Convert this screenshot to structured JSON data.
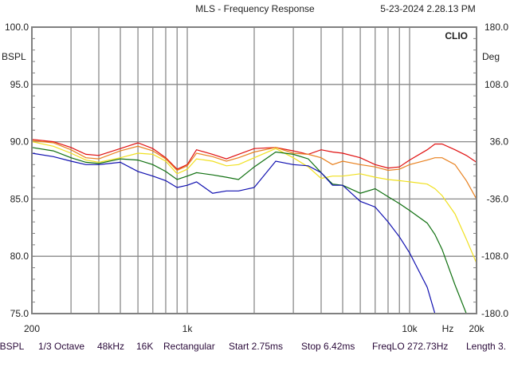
{
  "header": {
    "title": "MLS - Frequency Response",
    "timestamp": "5-23-2024 2.28.13 PM",
    "brand": "CLIO"
  },
  "footer": [
    "dBSPL",
    "1/3 Octave",
    "48kHz",
    "16K",
    "Rectangular",
    "Start 2.75ms",
    "Stop 6.42ms",
    "FreqLO 272.73Hz",
    "Length 3."
  ],
  "chart_data": {
    "type": "line",
    "title": "MLS - Frequency Response",
    "xlabel": "Hz",
    "ylabel": "dBSPL",
    "ylabel_display": "BSPL",
    "y2label": "Deg",
    "xscale": "log",
    "xlim": [
      200,
      20000
    ],
    "ylim": [
      75,
      100
    ],
    "y2lim": [
      -180,
      180
    ],
    "x_tick_labels": [
      "200",
      "1k",
      "10k",
      "20k"
    ],
    "x_tick_values": [
      200,
      1000,
      10000,
      20000
    ],
    "y_tick_labels": [
      "100.0",
      "95.0",
      "90.0",
      "85.0",
      "80.0",
      "75.0"
    ],
    "y_tick_values": [
      100,
      95,
      90,
      85,
      80,
      75
    ],
    "y2_tick_labels": [
      "180.0",
      "108.0",
      "36.0",
      "-36.0",
      "-108.0",
      "-180.0"
    ],
    "grid": true,
    "x": [
      200,
      250,
      300,
      350,
      400,
      500,
      600,
      700,
      800,
      900,
      1000,
      1100,
      1300,
      1500,
      1700,
      2000,
      2500,
      3000,
      3500,
      4000,
      4500,
      5000,
      6000,
      7000,
      8000,
      9000,
      10000,
      12000,
      13000,
      14000,
      16000,
      18000,
      20000
    ],
    "series": [
      {
        "name": "red",
        "color": "#e01010",
        "values": [
          90.2,
          90.0,
          89.5,
          88.9,
          88.8,
          89.4,
          89.9,
          89.4,
          88.6,
          87.6,
          88.0,
          89.3,
          88.9,
          88.5,
          88.9,
          89.4,
          89.5,
          89.2,
          88.9,
          89.3,
          89.1,
          89.0,
          88.6,
          88.0,
          87.7,
          87.8,
          88.4,
          89.3,
          89.8,
          89.8,
          89.3,
          88.8,
          88.2
        ]
      },
      {
        "name": "orange",
        "color": "#e8801e",
        "values": [
          90.1,
          89.9,
          89.3,
          88.6,
          88.5,
          89.2,
          89.6,
          89.2,
          88.5,
          87.5,
          87.9,
          89.0,
          88.7,
          88.3,
          88.6,
          89.1,
          89.5,
          89.0,
          88.9,
          88.6,
          88.0,
          88.3,
          88.0,
          87.8,
          87.5,
          87.6,
          88.0,
          88.4,
          88.6,
          88.6,
          88.0,
          86.6,
          85.0
        ]
      },
      {
        "name": "yellow",
        "color": "#f0e020",
        "values": [
          90.0,
          89.6,
          89.0,
          88.4,
          88.2,
          88.6,
          89.0,
          88.9,
          88.3,
          87.2,
          87.6,
          88.5,
          88.3,
          87.9,
          88.0,
          88.6,
          89.4,
          88.6,
          87.8,
          86.8,
          87.0,
          87.0,
          87.2,
          86.9,
          86.7,
          86.6,
          86.5,
          86.3,
          85.9,
          85.3,
          83.7,
          81.5,
          79.4
        ]
      },
      {
        "name": "green",
        "color": "#107010",
        "values": [
          89.5,
          89.2,
          88.6,
          88.2,
          88.1,
          88.5,
          88.4,
          88.0,
          87.4,
          86.7,
          87.0,
          87.3,
          87.1,
          86.9,
          86.7,
          87.8,
          89.1,
          88.9,
          88.5,
          87.3,
          86.3,
          86.2,
          85.5,
          85.9,
          85.2,
          84.6,
          84.0,
          82.9,
          81.9,
          80.6,
          77.5,
          75.0,
          75.0
        ]
      },
      {
        "name": "blue",
        "color": "#1010b0",
        "values": [
          89.0,
          88.7,
          88.3,
          88.0,
          88.0,
          88.2,
          87.4,
          87.0,
          86.6,
          86.0,
          86.2,
          86.5,
          85.5,
          85.7,
          85.7,
          86.0,
          88.3,
          88.0,
          87.9,
          87.3,
          86.2,
          86.2,
          84.8,
          84.3,
          83.0,
          81.7,
          80.3,
          77.3,
          75.0,
          75.0,
          75.0,
          75.0,
          75.0
        ]
      }
    ]
  }
}
